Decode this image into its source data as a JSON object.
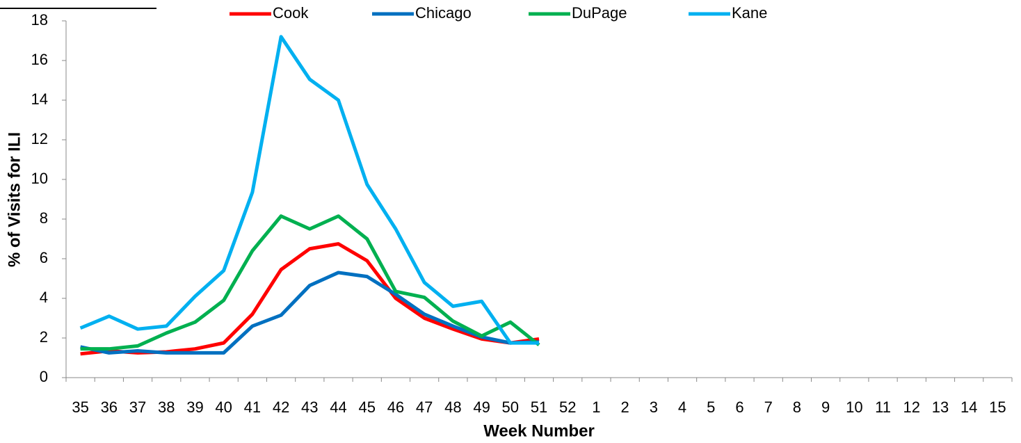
{
  "chart_data": {
    "type": "line",
    "x_label": "Week Number",
    "y_label": "% of Visits for ILI",
    "categories": [
      "35",
      "36",
      "37",
      "38",
      "39",
      "40",
      "41",
      "42",
      "43",
      "44",
      "45",
      "46",
      "47",
      "48",
      "49",
      "50",
      "51",
      "52",
      "1",
      "2",
      "3",
      "4",
      "5",
      "6",
      "7",
      "8",
      "9",
      "10",
      "11",
      "12",
      "13",
      "14",
      "15"
    ],
    "series": [
      {
        "name": "Cook",
        "color": "#ff0000",
        "values": [
          1.2,
          1.35,
          1.25,
          1.3,
          1.45,
          1.75,
          3.2,
          5.45,
          6.5,
          6.75,
          5.9,
          4.0,
          3.0,
          2.45,
          1.95,
          1.75,
          1.95,
          null,
          null,
          null,
          null,
          null,
          null,
          null,
          null,
          null,
          null,
          null,
          null,
          null,
          null,
          null,
          null
        ]
      },
      {
        "name": "Chicago",
        "color": "#0070c0",
        "values": [
          1.55,
          1.25,
          1.35,
          1.25,
          1.25,
          1.25,
          2.6,
          3.15,
          4.65,
          5.3,
          5.1,
          4.2,
          3.2,
          2.6,
          2.05,
          1.75,
          1.8,
          null,
          null,
          null,
          null,
          null,
          null,
          null,
          null,
          null,
          null,
          null,
          null,
          null,
          null,
          null,
          null
        ]
      },
      {
        "name": "DuPage",
        "color": "#00b050",
        "values": [
          1.45,
          1.45,
          1.6,
          2.25,
          2.8,
          3.9,
          6.4,
          8.15,
          7.5,
          8.15,
          7.0,
          4.35,
          4.05,
          2.85,
          2.1,
          2.8,
          1.65,
          null,
          null,
          null,
          null,
          null,
          null,
          null,
          null,
          null,
          null,
          null,
          null,
          null,
          null,
          null,
          null
        ]
      },
      {
        "name": "Kane",
        "color": "#00b0f0",
        "values": [
          2.5,
          3.1,
          2.45,
          2.6,
          4.1,
          5.4,
          9.35,
          17.2,
          15.05,
          14.0,
          9.75,
          7.5,
          4.8,
          3.6,
          3.85,
          1.75,
          1.75,
          null,
          null,
          null,
          null,
          null,
          null,
          null,
          null,
          null,
          null,
          null,
          null,
          null,
          null,
          null,
          null
        ]
      }
    ],
    "ylim": [
      0,
      18
    ],
    "yticks": [
      0,
      2,
      4,
      6,
      8,
      10,
      12,
      14,
      16,
      18
    ],
    "grid": false,
    "legend": "top"
  }
}
